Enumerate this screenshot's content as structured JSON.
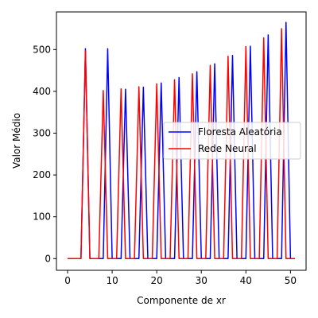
{
  "chart_data": {
    "type": "line",
    "xlabel": "Componente de xr",
    "ylabel": "Valor Médio",
    "xlim": [
      -2.5,
      53.5
    ],
    "ylim": [
      -28,
      590
    ],
    "xticks": [
      0,
      10,
      20,
      30,
      40,
      50
    ],
    "yticks": [
      0,
      100,
      200,
      300,
      400,
      500
    ],
    "grid": false,
    "legend_position": "center-right",
    "series": [
      {
        "name": "Floresta Aleatória",
        "color": "#0000ff",
        "x": [
          0,
          1,
          2,
          3,
          4,
          5,
          6,
          7,
          8,
          9,
          10,
          11,
          12,
          13,
          14,
          15,
          16,
          17,
          18,
          19,
          20,
          21,
          22,
          23,
          24,
          25,
          26,
          27,
          28,
          29,
          30,
          31,
          32,
          33,
          34,
          35,
          36,
          37,
          38,
          39,
          40,
          41,
          42,
          43,
          44,
          45,
          46,
          47,
          48,
          49,
          50,
          51
        ],
        "y": [
          0,
          0,
          0,
          0,
          502,
          0,
          0,
          0,
          0,
          502,
          0,
          0,
          0,
          405,
          0,
          0,
          0,
          410,
          0,
          0,
          0,
          420,
          0,
          0,
          0,
          433,
          0,
          0,
          0,
          447,
          0,
          0,
          0,
          466,
          0,
          0,
          0,
          486,
          0,
          0,
          0,
          508,
          0,
          0,
          0,
          535,
          0,
          0,
          0,
          565,
          0,
          0
        ]
      },
      {
        "name": "Rede Neural",
        "color": "#ff0000",
        "x": [
          0,
          1,
          2,
          3,
          4,
          5,
          6,
          7,
          8,
          9,
          10,
          11,
          12,
          13,
          14,
          15,
          16,
          17,
          18,
          19,
          20,
          21,
          22,
          23,
          24,
          25,
          26,
          27,
          28,
          29,
          30,
          31,
          32,
          33,
          34,
          35,
          36,
          37,
          38,
          39,
          40,
          41,
          42,
          43,
          44,
          45,
          46,
          47,
          48,
          49,
          50,
          51
        ],
        "y": [
          0,
          0,
          0,
          0,
          497,
          0,
          0,
          0,
          402,
          0,
          0,
          0,
          406,
          0,
          0,
          0,
          411,
          0,
          0,
          0,
          418,
          0,
          0,
          0,
          428,
          0,
          0,
          0,
          442,
          0,
          0,
          0,
          462,
          0,
          0,
          0,
          484,
          0,
          0,
          0,
          507,
          0,
          0,
          0,
          528,
          0,
          0,
          0,
          550,
          0,
          0,
          0
        ]
      }
    ]
  }
}
